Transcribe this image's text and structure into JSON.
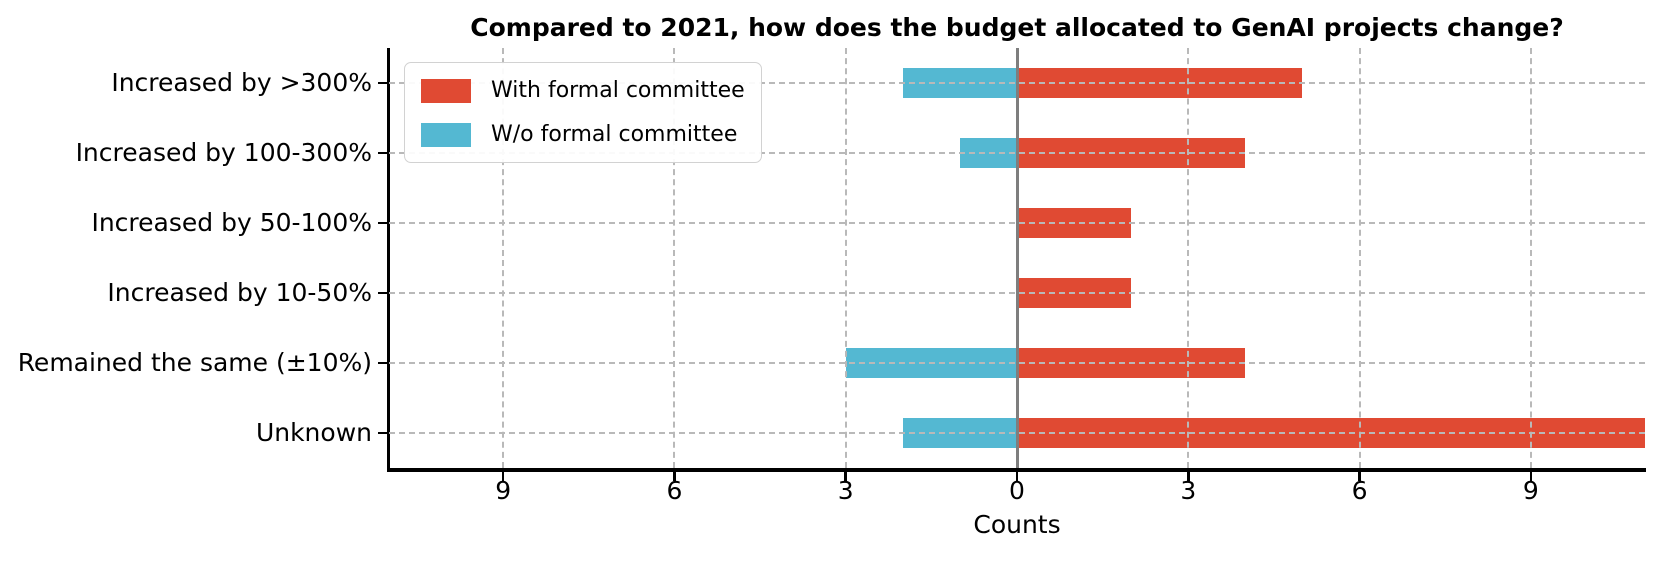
{
  "chart_data": {
    "type": "bar",
    "orientation": "horizontal-diverging",
    "title": "Compared to 2021, how does the budget allocated to GenAI projects change?",
    "xlabel": "Counts",
    "categories": [
      "Increased by >300%",
      "Increased by 100-300%",
      "Increased by 50-100%",
      "Increased by 10-50%",
      "Remained the same (±10%)",
      "Unknown"
    ],
    "series": [
      {
        "name": "With formal committee",
        "side": "right",
        "color": "#e04a33",
        "values": [
          5,
          4,
          2,
          2,
          4,
          11
        ]
      },
      {
        "name": "W/o formal committee",
        "side": "left",
        "color": "#54b8d2",
        "values": [
          2,
          1,
          0,
          0,
          3,
          2
        ]
      }
    ],
    "xlim": [
      -11,
      11
    ],
    "xticks": [
      -9,
      -6,
      -3,
      0,
      3,
      6,
      9
    ],
    "xtick_labels": [
      "9",
      "6",
      "3",
      "0",
      "3",
      "6",
      "9"
    ],
    "grid": true,
    "grid_style": "dashed",
    "zero_line": true,
    "legend_position": "upper left"
  },
  "legend": {
    "items": [
      {
        "label": "With formal committee",
        "color": "#e04a33"
      },
      {
        "label": "W/o formal committee",
        "color": "#54b8d2"
      }
    ]
  },
  "colors": {
    "red": "#e04a33",
    "blue": "#54b8d2",
    "grid": "#b9b9b9",
    "zero_line": "#7e7e7e",
    "axis": "#000000",
    "legend_border": "#d2d2d2",
    "background": "#ffffff"
  }
}
